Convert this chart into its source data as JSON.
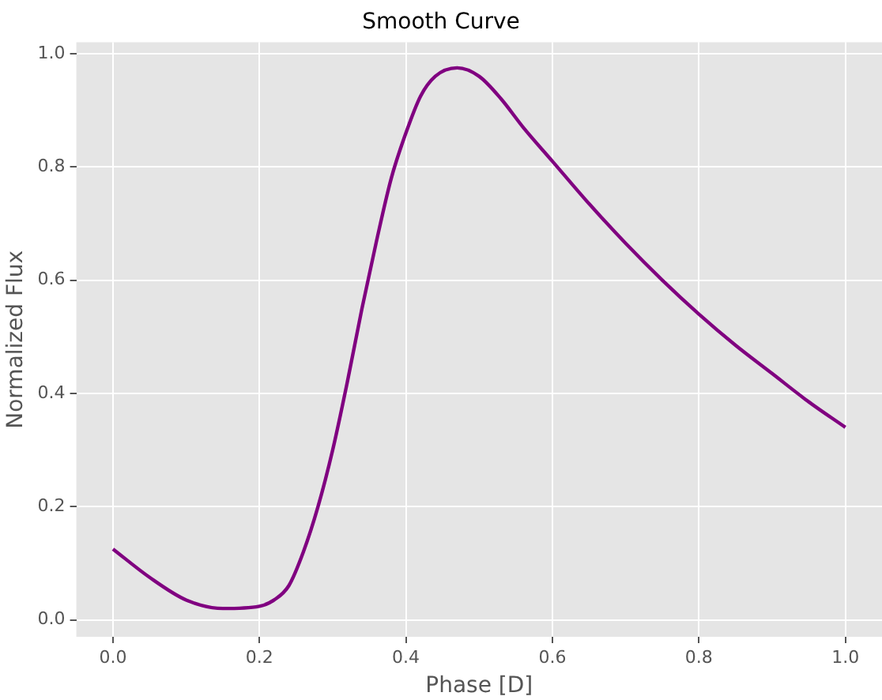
{
  "chart_data": {
    "type": "line",
    "title": "Smooth Curve",
    "xlabel": "Phase [D]",
    "ylabel": "Normalized Flux",
    "x": [
      0,
      0.05,
      0.1,
      0.15,
      0.2,
      0.22,
      0.24,
      0.26,
      0.28,
      0.3,
      0.32,
      0.34,
      0.36,
      0.38,
      0.4,
      0.42,
      0.44,
      0.47,
      0.5,
      0.53,
      0.56,
      0.6,
      0.65,
      0.7,
      0.75,
      0.8,
      0.85,
      0.9,
      0.95,
      1.0
    ],
    "series": [
      {
        "color": "#800080",
        "values": [
          0.125,
          0.075,
          0.035,
          0.02,
          0.024,
          0.035,
          0.06,
          0.12,
          0.2,
          0.3,
          0.42,
          0.55,
          0.67,
          0.78,
          0.86,
          0.925,
          0.96,
          0.975,
          0.96,
          0.92,
          0.87,
          0.81,
          0.735,
          0.665,
          0.6,
          0.54,
          0.485,
          0.435,
          0.385,
          0.34
        ]
      }
    ],
    "xlim": [
      -0.05,
      1.05
    ],
    "ylim": [
      -0.03,
      1.02
    ],
    "xticks": [
      {
        "value": 0,
        "label": "0.0"
      },
      {
        "value": 0.2,
        "label": "0.2"
      },
      {
        "value": 0.4,
        "label": "0.4"
      },
      {
        "value": 0.6,
        "label": "0.6"
      },
      {
        "value": 0.8,
        "label": "0.8"
      },
      {
        "value": 1,
        "label": "1.0"
      }
    ],
    "yticks": [
      {
        "value": 0,
        "label": "0.0"
      },
      {
        "value": 0.2,
        "label": "0.2"
      },
      {
        "value": 0.4,
        "label": "0.4"
      },
      {
        "value": 0.6,
        "label": "0.6"
      },
      {
        "value": 0.8,
        "label": "0.8"
      },
      {
        "value": 1,
        "label": "1.0"
      }
    ],
    "grid": true,
    "marker": "none",
    "line_style": "solid",
    "legend": false
  }
}
